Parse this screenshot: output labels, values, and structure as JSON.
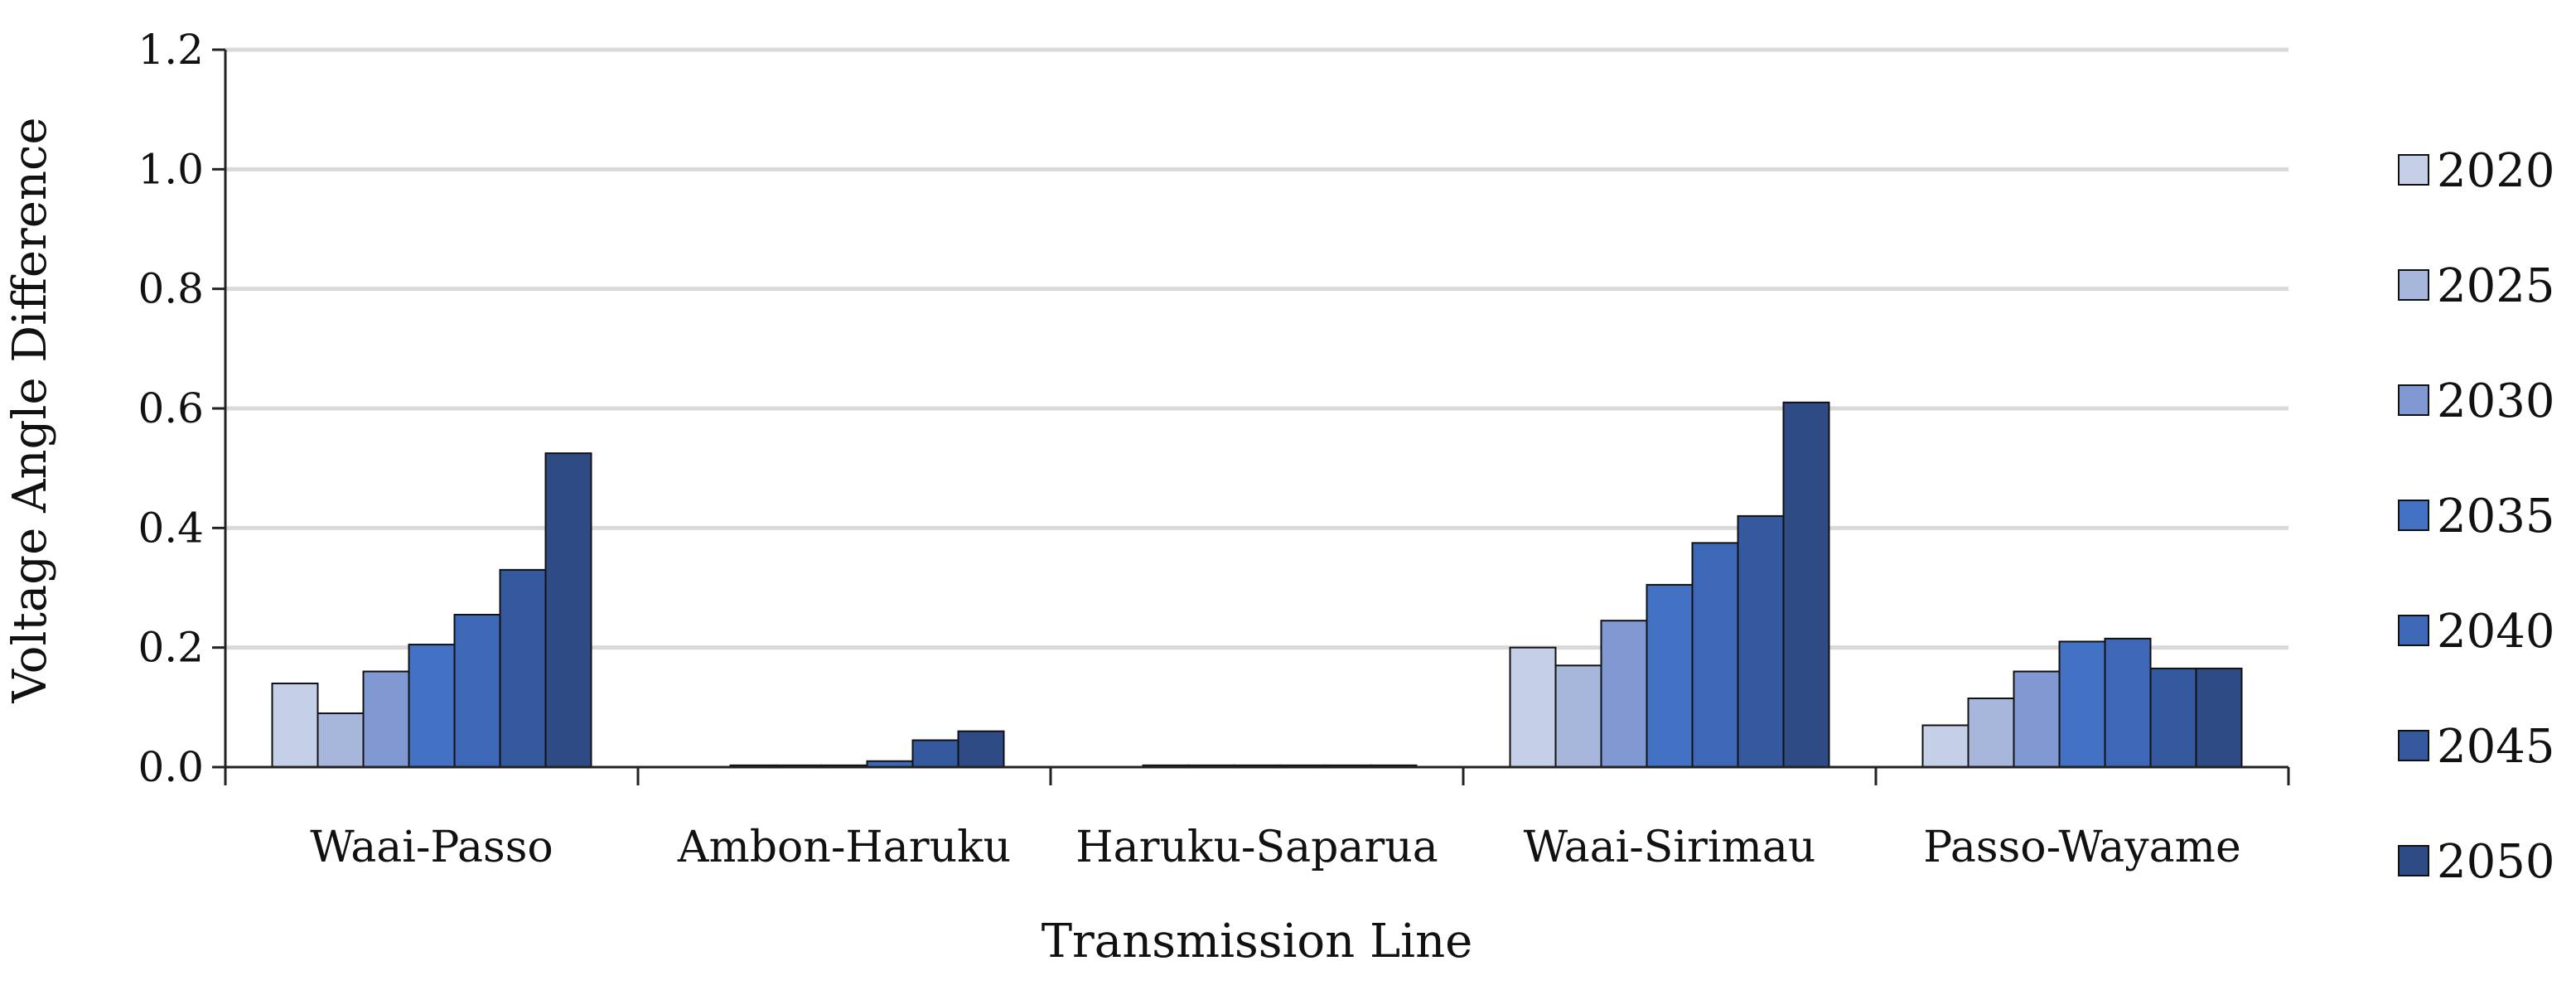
{
  "chart_data": {
    "type": "bar",
    "title": "",
    "xlabel": "Transmission Line",
    "ylabel": "Voltage Angle Difference",
    "ylim": [
      0,
      1.2
    ],
    "yticks": [
      "0.0",
      "0.2",
      "0.4",
      "0.6",
      "0.8",
      "1.0",
      "1.2"
    ],
    "grid": true,
    "legend_position": "right",
    "categories": [
      "Waai-Passo",
      "Ambon-Haruku",
      "Haruku-Saparua",
      "Waai-Sirimau",
      "Passo-Wayame"
    ],
    "series": [
      {
        "name": "2020",
        "color": "#c5d0e8",
        "values": [
          0.14,
          0.0,
          0.0,
          0.2,
          0.07
        ]
      },
      {
        "name": "2025",
        "color": "#a7b7dc",
        "values": [
          0.09,
          0.003,
          0.003,
          0.17,
          0.115
        ]
      },
      {
        "name": "2030",
        "color": "#8199d2",
        "values": [
          0.16,
          0.003,
          0.003,
          0.245,
          0.16
        ]
      },
      {
        "name": "2035",
        "color": "#4372c4",
        "values": [
          0.205,
          0.003,
          0.003,
          0.305,
          0.21
        ]
      },
      {
        "name": "2040",
        "color": "#3d68b8",
        "values": [
          0.255,
          0.01,
          0.003,
          0.375,
          0.215
        ]
      },
      {
        "name": "2045",
        "color": "#34599f",
        "values": [
          0.33,
          0.045,
          0.003,
          0.42,
          0.165
        ]
      },
      {
        "name": "2050",
        "color": "#2e4b86",
        "values": [
          0.525,
          0.06,
          0.003,
          0.61,
          0.165
        ]
      }
    ]
  }
}
